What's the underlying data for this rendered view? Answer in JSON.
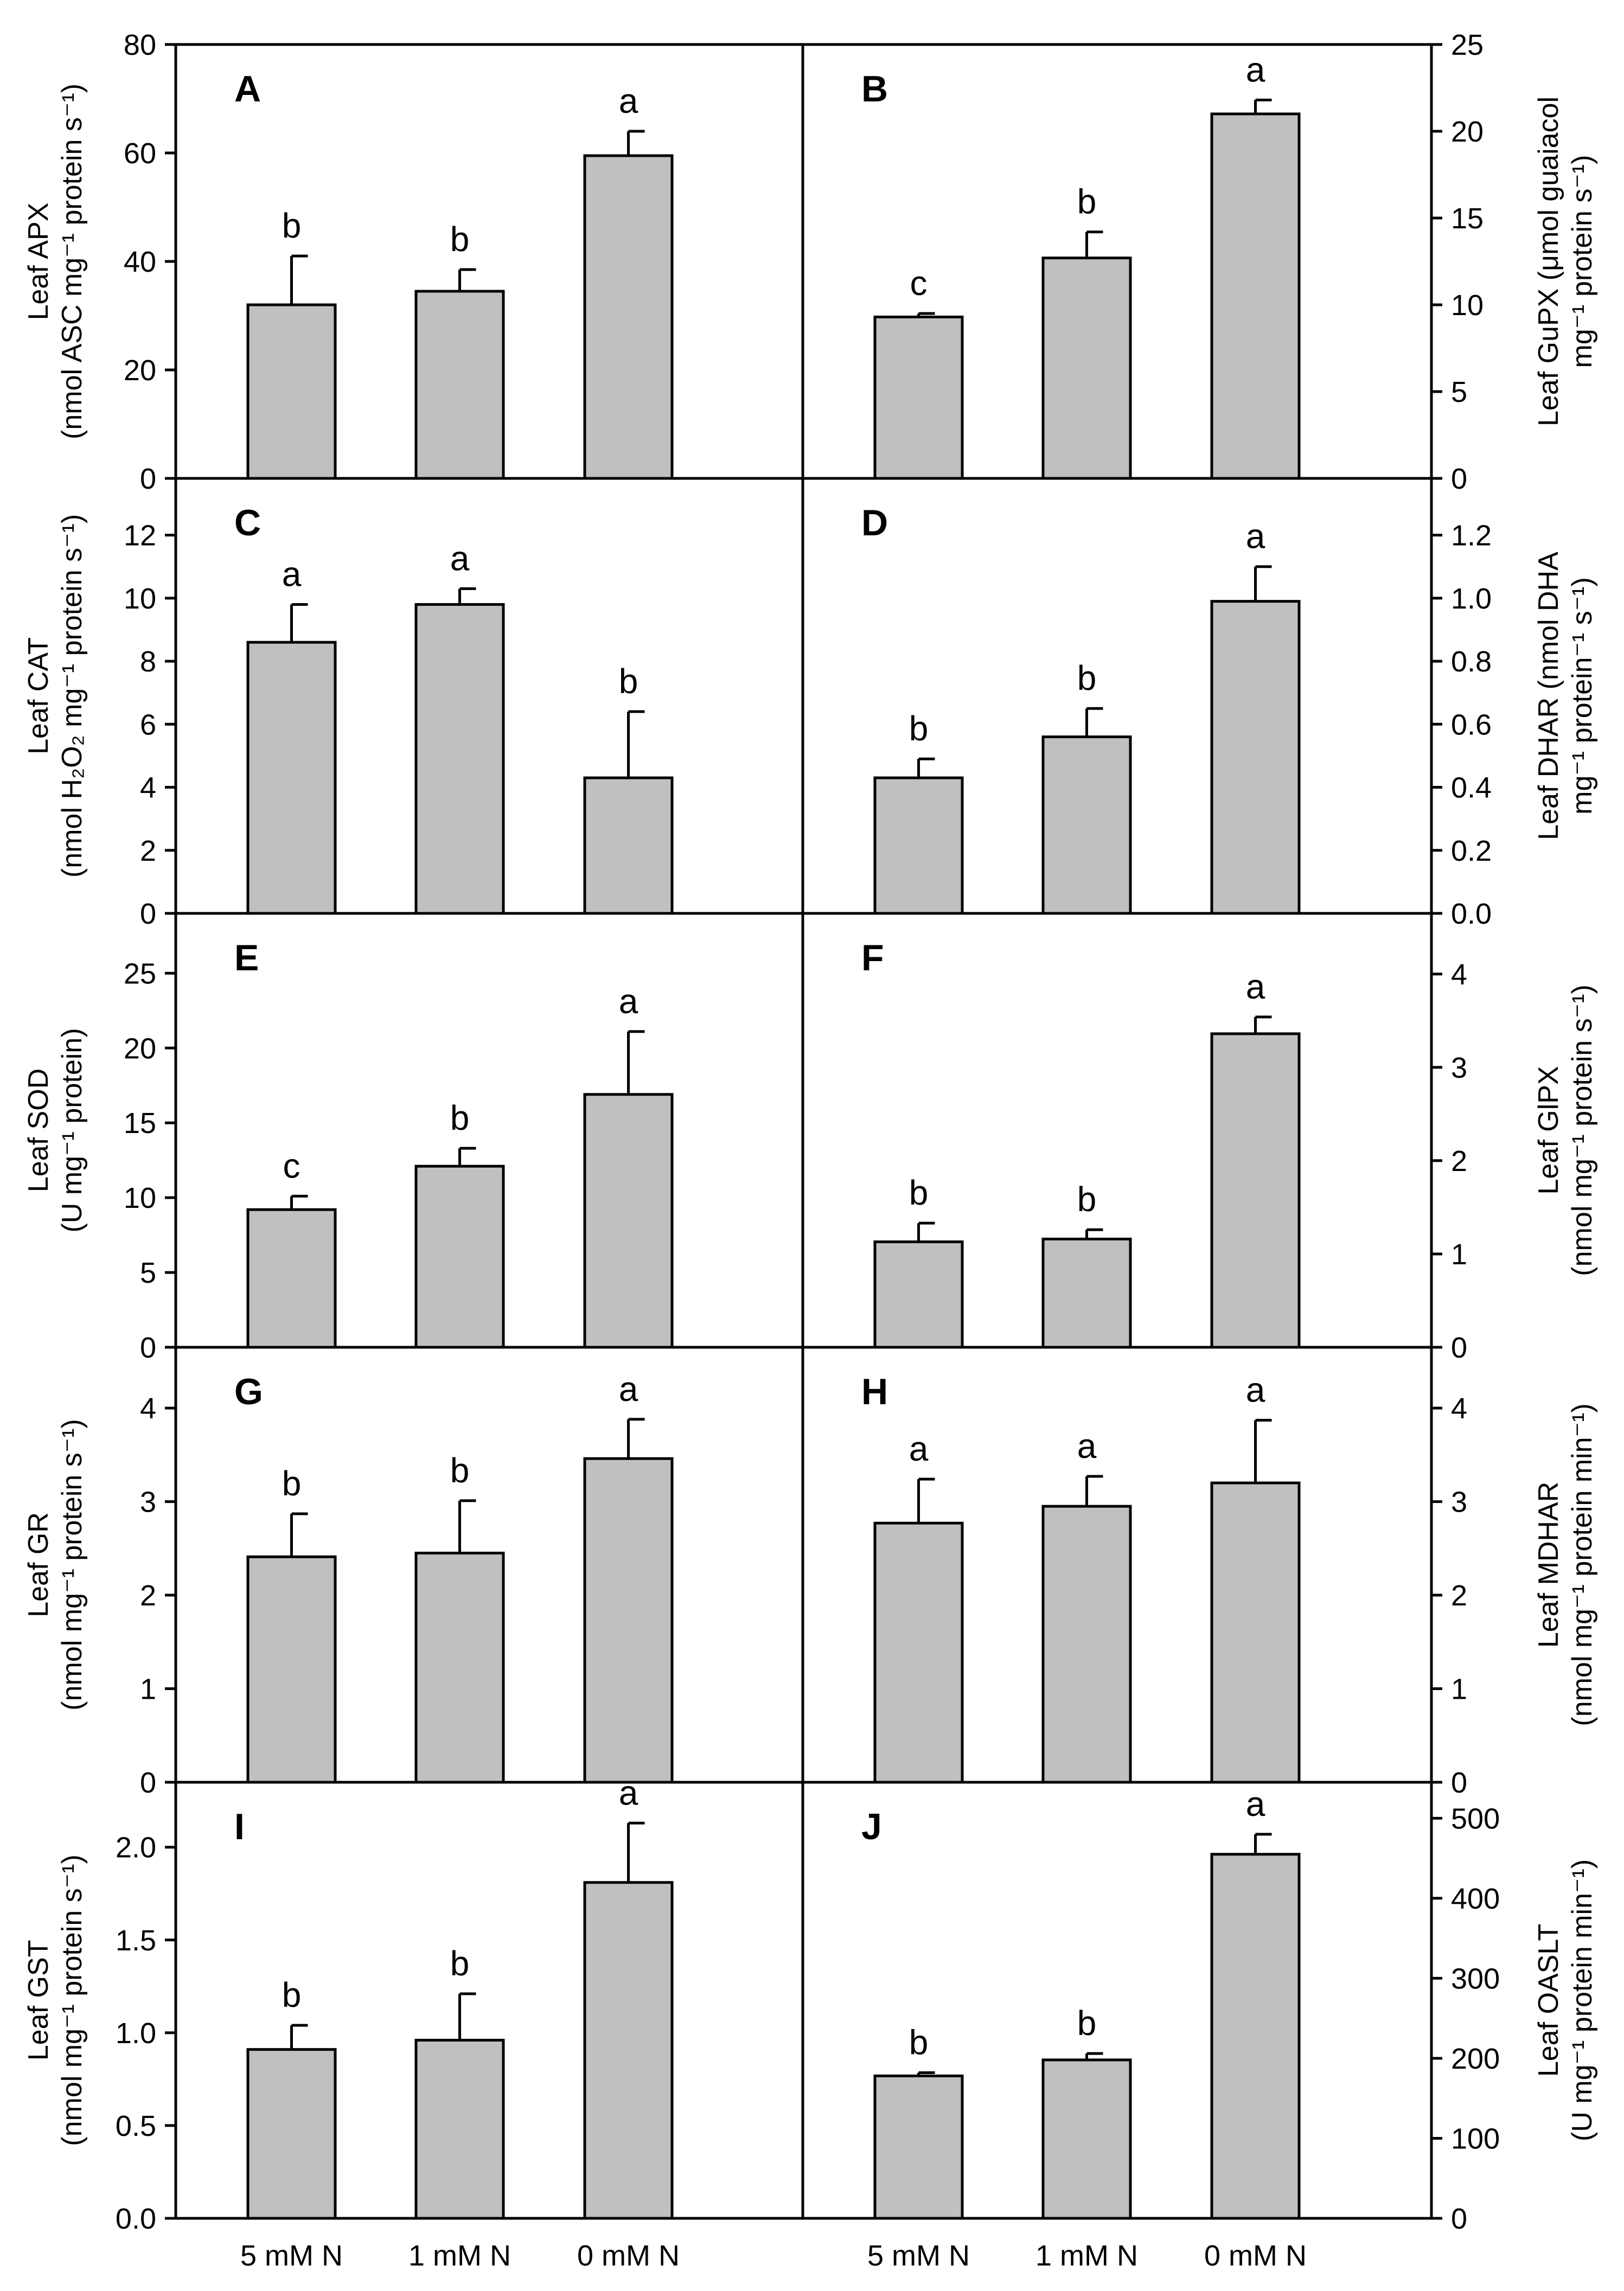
{
  "colors": {
    "bar_fill": "#c0c0c0",
    "axis": "#000000",
    "background": "#ffffff"
  },
  "categories": [
    "5 mM N",
    "1 mM N",
    "0 mM N"
  ],
  "chart_data": [
    {
      "type": "bar",
      "panel": "A",
      "side": "left",
      "title": "",
      "xlabel": "",
      "ylabel_lines": [
        "Leaf APX",
        "(nmol ASC mg⁻¹ protein s⁻¹)"
      ],
      "ylim": [
        0,
        80
      ],
      "yticks": [
        0,
        20,
        40,
        60,
        80
      ],
      "ytick_labels": [
        "0",
        "20",
        "40",
        "60",
        "80"
      ],
      "categories": [
        "5 mM N",
        "1 mM N",
        "0 mM N"
      ],
      "values": [
        32,
        34.5,
        59.5
      ],
      "errors": [
        9,
        4,
        4.5
      ],
      "letters": [
        "b",
        "b",
        "a"
      ]
    },
    {
      "type": "bar",
      "panel": "B",
      "side": "right",
      "title": "",
      "xlabel": "",
      "ylabel_lines": [
        "Leaf GuPX (μmol guaiacol",
        "mg⁻¹ protein s⁻¹)"
      ],
      "ylim": [
        0,
        25
      ],
      "yticks": [
        0,
        5,
        10,
        15,
        20,
        25
      ],
      "ytick_labels": [
        "0",
        "5",
        "10",
        "15",
        "20",
        "25"
      ],
      "categories": [
        "5 mM N",
        "1 mM N",
        "0 mM N"
      ],
      "values": [
        9.3,
        12.7,
        21
      ],
      "errors": [
        0.2,
        1.5,
        0.8
      ],
      "letters": [
        "c",
        "b",
        "a"
      ]
    },
    {
      "type": "bar",
      "panel": "C",
      "side": "left",
      "title": "",
      "xlabel": "",
      "ylabel_lines": [
        "Leaf CAT",
        "(nmol H₂O₂ mg⁻¹ protein s⁻¹)"
      ],
      "ylim": [
        0,
        13.8
      ],
      "yticks": [
        0,
        2,
        4,
        6,
        8,
        10,
        12
      ],
      "ytick_labels": [
        "0",
        "2",
        "4",
        "6",
        "8",
        "10",
        "12"
      ],
      "categories": [
        "5 mM N",
        "1 mM N",
        "0 mM N"
      ],
      "values": [
        8.6,
        9.8,
        4.3
      ],
      "errors": [
        1.2,
        0.5,
        2.1
      ],
      "letters": [
        "a",
        "a",
        "b"
      ]
    },
    {
      "type": "bar",
      "panel": "D",
      "side": "right",
      "title": "",
      "xlabel": "",
      "ylabel_lines": [
        "Leaf DHAR (nmol DHA",
        "mg⁻¹ protein⁻¹ s⁻¹)"
      ],
      "ylim": [
        0,
        1.38
      ],
      "yticks": [
        0,
        0.2,
        0.4,
        0.6,
        0.8,
        1.0,
        1.2
      ],
      "ytick_labels": [
        "0.0",
        "0.2",
        "0.4",
        "0.6",
        "0.8",
        "1.0",
        "1.2"
      ],
      "categories": [
        "5 mM N",
        "1 mM N",
        "0 mM N"
      ],
      "values": [
        0.43,
        0.56,
        0.99
      ],
      "errors": [
        0.06,
        0.09,
        0.11
      ],
      "letters": [
        "b",
        "b",
        "a"
      ]
    },
    {
      "type": "bar",
      "panel": "E",
      "side": "left",
      "title": "",
      "xlabel": "",
      "ylabel_lines": [
        "Leaf SOD",
        "(U mg⁻¹ protein)"
      ],
      "ylim": [
        0,
        29
      ],
      "yticks": [
        0,
        5,
        10,
        15,
        20,
        25
      ],
      "ytick_labels": [
        "0",
        "5",
        "10",
        "15",
        "20",
        "25"
      ],
      "categories": [
        "5 mM N",
        "1 mM N",
        "0 mM N"
      ],
      "values": [
        9.2,
        12.1,
        16.9
      ],
      "errors": [
        0.9,
        1.2,
        4.2
      ],
      "letters": [
        "c",
        "b",
        "a"
      ]
    },
    {
      "type": "bar",
      "panel": "F",
      "side": "right",
      "title": "",
      "xlabel": "",
      "ylabel_lines": [
        "Leaf GlPX",
        "(nmol mg⁻¹ protein s⁻¹)"
      ],
      "ylim": [
        0,
        4.65
      ],
      "yticks": [
        0,
        1,
        2,
        3,
        4
      ],
      "ytick_labels": [
        "0",
        "1",
        "2",
        "3",
        "4"
      ],
      "categories": [
        "5 mM N",
        "1 mM N",
        "0 mM N"
      ],
      "values": [
        1.13,
        1.16,
        3.36
      ],
      "errors": [
        0.2,
        0.1,
        0.18
      ],
      "letters": [
        "b",
        "b",
        "a"
      ]
    },
    {
      "type": "bar",
      "panel": "G",
      "side": "left",
      "title": "",
      "xlabel": "",
      "ylabel_lines": [
        "Leaf GR",
        "(nmol mg⁻¹ protein s⁻¹)"
      ],
      "ylim": [
        0,
        4.65
      ],
      "yticks": [
        0,
        1,
        2,
        3,
        4
      ],
      "ytick_labels": [
        "0",
        "1",
        "2",
        "3",
        "4"
      ],
      "categories": [
        "5 mM N",
        "1 mM N",
        "0 mM N"
      ],
      "values": [
        2.41,
        2.45,
        3.46
      ],
      "errors": [
        0.46,
        0.56,
        0.42
      ],
      "letters": [
        "b",
        "b",
        "a"
      ]
    },
    {
      "type": "bar",
      "panel": "H",
      "side": "right",
      "title": "",
      "xlabel": "",
      "ylabel_lines": [
        "Leaf MDHAR",
        "(nmol mg⁻¹ protein min⁻¹)"
      ],
      "ylim": [
        0,
        4.65
      ],
      "yticks": [
        0,
        1,
        2,
        3,
        4
      ],
      "ytick_labels": [
        "0",
        "1",
        "2",
        "3",
        "4"
      ],
      "categories": [
        "5 mM N",
        "1 mM N",
        "0 mM N"
      ],
      "values": [
        2.77,
        2.95,
        3.2
      ],
      "errors": [
        0.47,
        0.32,
        0.67
      ],
      "letters": [
        "a",
        "a",
        "a"
      ]
    },
    {
      "type": "bar",
      "panel": "I",
      "side": "left",
      "title": "",
      "xlabel": "",
      "ylabel_lines": [
        "Leaf GST",
        "(nmol mg⁻¹ protein s⁻¹)"
      ],
      "ylim": [
        0,
        2.35
      ],
      "yticks": [
        0,
        0.5,
        1.0,
        1.5,
        2.0
      ],
      "ytick_labels": [
        "0.0",
        "0.5",
        "1.0",
        "1.5",
        "2.0"
      ],
      "categories": [
        "5 mM N",
        "1 mM N",
        "0 mM N"
      ],
      "values": [
        0.91,
        0.96,
        1.81
      ],
      "errors": [
        0.13,
        0.25,
        0.32
      ],
      "letters": [
        "b",
        "b",
        "a"
      ]
    },
    {
      "type": "bar",
      "panel": "J",
      "side": "right",
      "title": "",
      "xlabel": "",
      "ylabel_lines": [
        "Leaf OASLT",
        "(U mg⁻¹ protein min⁻¹)"
      ],
      "ylim": [
        0,
        545
      ],
      "yticks": [
        0,
        100,
        200,
        300,
        400,
        500
      ],
      "ytick_labels": [
        "0",
        "100",
        "200",
        "300",
        "400",
        "500"
      ],
      "categories": [
        "5 mM N",
        "1 mM N",
        "0 mM N"
      ],
      "values": [
        178,
        198,
        455
      ],
      "errors": [
        4,
        8,
        25
      ],
      "letters": [
        "b",
        "b",
        "a"
      ]
    }
  ]
}
